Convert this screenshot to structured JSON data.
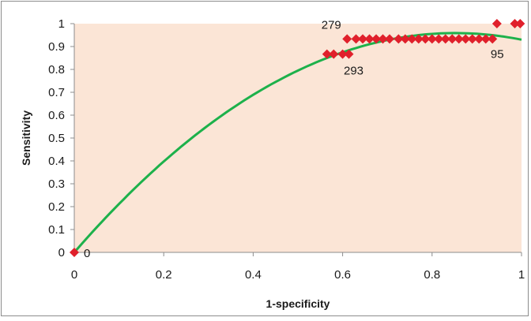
{
  "chart_data": {
    "type": "scatter",
    "title": "",
    "xlabel": "1-specificity",
    "ylabel": "Sensitivity",
    "xlim": [
      0,
      1
    ],
    "ylim": [
      0,
      1
    ],
    "x_ticks": [
      "0",
      "0.2",
      "0.4",
      "0.6",
      "0.8",
      "1"
    ],
    "y_ticks": [
      "0",
      "0.1",
      "0.2",
      "0.3",
      "0.4",
      "0.5",
      "0.6",
      "0.7",
      "0.8",
      "0.9",
      "1"
    ],
    "grid": false,
    "legend": "none",
    "colors": {
      "plot_background": "#fbe5d6",
      "marker": "#e0202b",
      "trendline": "#1db14b",
      "axis": "#8c8c8c"
    },
    "marker_shape": "diamond",
    "series": [
      {
        "points": [
          {
            "x": 0.0,
            "y": 0.0
          },
          {
            "x": 0.565,
            "y": 0.867
          },
          {
            "x": 0.58,
            "y": 0.867
          },
          {
            "x": 0.6,
            "y": 0.867
          },
          {
            "x": 0.614,
            "y": 0.867
          },
          {
            "x": 0.61,
            "y": 0.933
          },
          {
            "x": 0.63,
            "y": 0.933
          },
          {
            "x": 0.645,
            "y": 0.933
          },
          {
            "x": 0.66,
            "y": 0.933
          },
          {
            "x": 0.675,
            "y": 0.933
          },
          {
            "x": 0.69,
            "y": 0.933
          },
          {
            "x": 0.705,
            "y": 0.933
          },
          {
            "x": 0.725,
            "y": 0.933
          },
          {
            "x": 0.74,
            "y": 0.933
          },
          {
            "x": 0.755,
            "y": 0.933
          },
          {
            "x": 0.77,
            "y": 0.933
          },
          {
            "x": 0.785,
            "y": 0.933
          },
          {
            "x": 0.8,
            "y": 0.933
          },
          {
            "x": 0.815,
            "y": 0.933
          },
          {
            "x": 0.83,
            "y": 0.933
          },
          {
            "x": 0.845,
            "y": 0.933
          },
          {
            "x": 0.86,
            "y": 0.933
          },
          {
            "x": 0.875,
            "y": 0.933
          },
          {
            "x": 0.89,
            "y": 0.933
          },
          {
            "x": 0.905,
            "y": 0.933
          },
          {
            "x": 0.92,
            "y": 0.933
          },
          {
            "x": 0.935,
            "y": 0.933
          },
          {
            "x": 0.945,
            "y": 1.0
          },
          {
            "x": 0.985,
            "y": 1.0
          },
          {
            "x": 0.997,
            "y": 1.0
          }
        ]
      }
    ],
    "trendline": {
      "type": "polynomial",
      "coefficients": [
        0.0,
        2.25,
        -1.32
      ]
    },
    "annotations": [
      {
        "text": "0",
        "x": 0.0,
        "y": 0.0,
        "position": "right"
      },
      {
        "text": "279",
        "x": 0.61,
        "y": 0.933,
        "position": "above-left"
      },
      {
        "text": "293",
        "x": 0.614,
        "y": 0.867,
        "position": "below-right"
      },
      {
        "text": "95",
        "x": 0.935,
        "y": 0.933,
        "position": "below"
      }
    ]
  }
}
